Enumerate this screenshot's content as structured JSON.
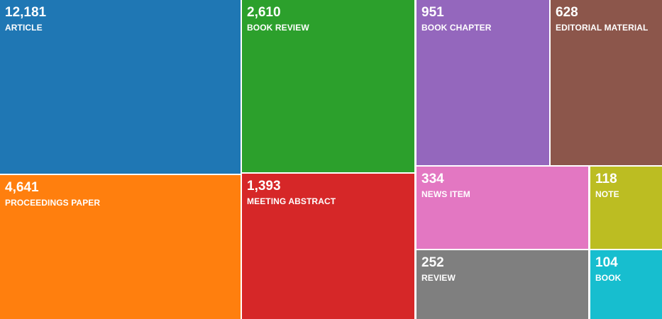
{
  "chart_data": {
    "type": "treemap",
    "items": [
      {
        "label": "ARTICLE",
        "value": 12181,
        "display": "12,181",
        "color": "#1f77b4"
      },
      {
        "label": "PROCEEDINGS PAPER",
        "value": 4641,
        "display": "4,641",
        "color": "#ff7f0e"
      },
      {
        "label": "BOOK REVIEW",
        "value": 2610,
        "display": "2,610",
        "color": "#2ca02c"
      },
      {
        "label": "MEETING ABSTRACT",
        "value": 1393,
        "display": "1,393",
        "color": "#d62728"
      },
      {
        "label": "BOOK CHAPTER",
        "value": 951,
        "display": "951",
        "color": "#9467bd"
      },
      {
        "label": "EDITORIAL MATERIAL",
        "value": 628,
        "display": "628",
        "color": "#8c564b"
      },
      {
        "label": "NEWS ITEM",
        "value": 334,
        "display": "334",
        "color": "#e377c2"
      },
      {
        "label": "NOTE",
        "value": 118,
        "display": "118",
        "color": "#bcbd22"
      },
      {
        "label": "REVIEW",
        "value": 252,
        "display": "252",
        "color": "#7f7f7f"
      },
      {
        "label": "BOOK",
        "value": 104,
        "display": "104",
        "color": "#17becf"
      }
    ]
  }
}
